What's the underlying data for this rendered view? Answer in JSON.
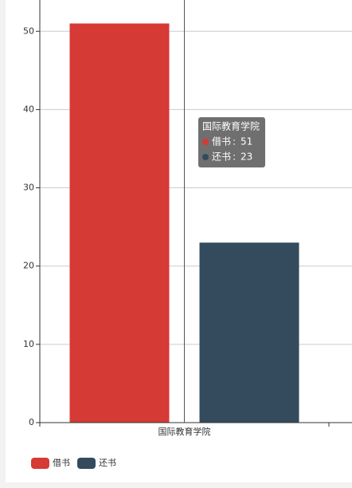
{
  "chart_data": {
    "type": "bar",
    "categories": [
      "国际教育学院"
    ],
    "series": [
      {
        "name": "借书",
        "color": "#d53a35",
        "values": [
          51
        ]
      },
      {
        "name": "还书",
        "color": "#334b5c",
        "values": [
          23
        ]
      }
    ],
    "ylim": [
      0,
      54
    ],
    "yticks": [
      0,
      10,
      20,
      30,
      40,
      50
    ],
    "grid": true,
    "legend": "bottom-left",
    "tooltip": {
      "category": 0,
      "separator": ":"
    }
  }
}
